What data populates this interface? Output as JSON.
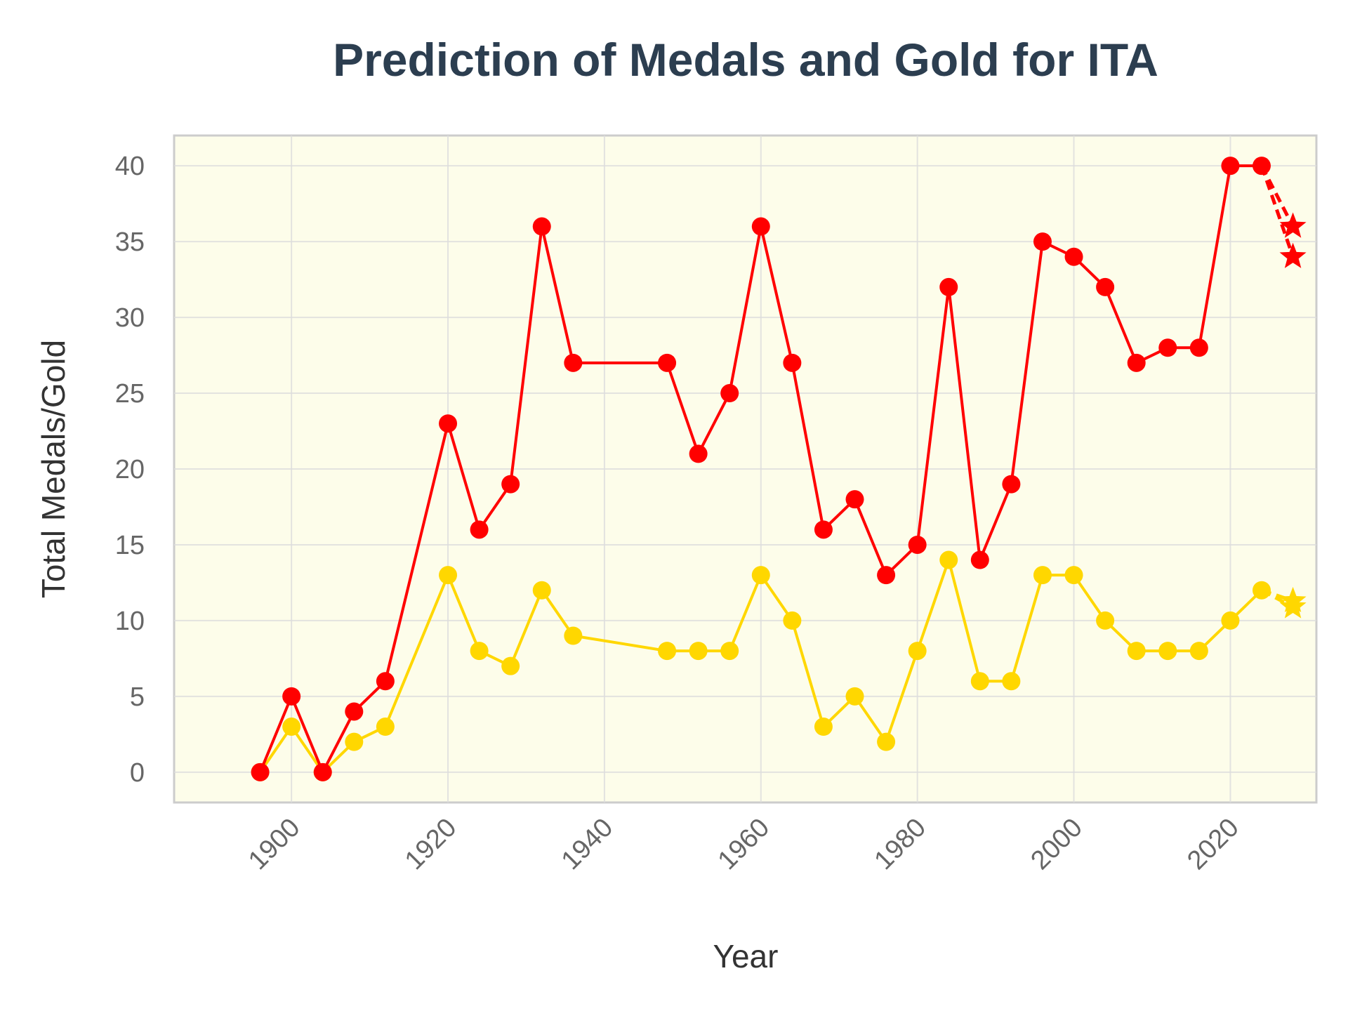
{
  "chart_data": {
    "type": "line",
    "title": "Prediction of Medals and Gold for ITA",
    "xlabel": "Year",
    "ylabel": "Total Medals/Gold",
    "xlim": [
      1885,
      2031
    ],
    "ylim": [
      -2,
      42
    ],
    "x_ticks": [
      1900,
      1920,
      1940,
      1960,
      1980,
      2000,
      2020
    ],
    "y_ticks": [
      0,
      5,
      10,
      15,
      20,
      25,
      30,
      35,
      40
    ],
    "grid": true,
    "background_color": "#fdfdea",
    "x": [
      1896,
      1900,
      1904,
      1908,
      1912,
      1920,
      1924,
      1928,
      1932,
      1936,
      1948,
      1952,
      1956,
      1960,
      1964,
      1968,
      1972,
      1976,
      1980,
      1984,
      1988,
      1992,
      1996,
      2000,
      2004,
      2008,
      2012,
      2016,
      2020,
      2024
    ],
    "series": [
      {
        "color": "#ff0000",
        "values": [
          0,
          5,
          0,
          4,
          6,
          23,
          16,
          19,
          36,
          27,
          27,
          21,
          25,
          36,
          27,
          16,
          18,
          13,
          15,
          32,
          14,
          19,
          35,
          34,
          32,
          27,
          28,
          28,
          40,
          40
        ],
        "predictions": [
          {
            "x": 2028,
            "y": 36
          },
          {
            "x": 2028,
            "y": 34
          }
        ]
      },
      {
        "color": "#ffd700",
        "values": [
          0,
          3,
          0,
          2,
          3,
          13,
          8,
          7,
          12,
          9,
          8,
          8,
          8,
          13,
          10,
          3,
          5,
          2,
          8,
          14,
          6,
          6,
          13,
          13,
          10,
          8,
          8,
          8,
          10,
          12
        ],
        "predictions": [
          {
            "x": 2028,
            "y": 11.3
          },
          {
            "x": 2028,
            "y": 10.9
          }
        ]
      }
    ]
  }
}
